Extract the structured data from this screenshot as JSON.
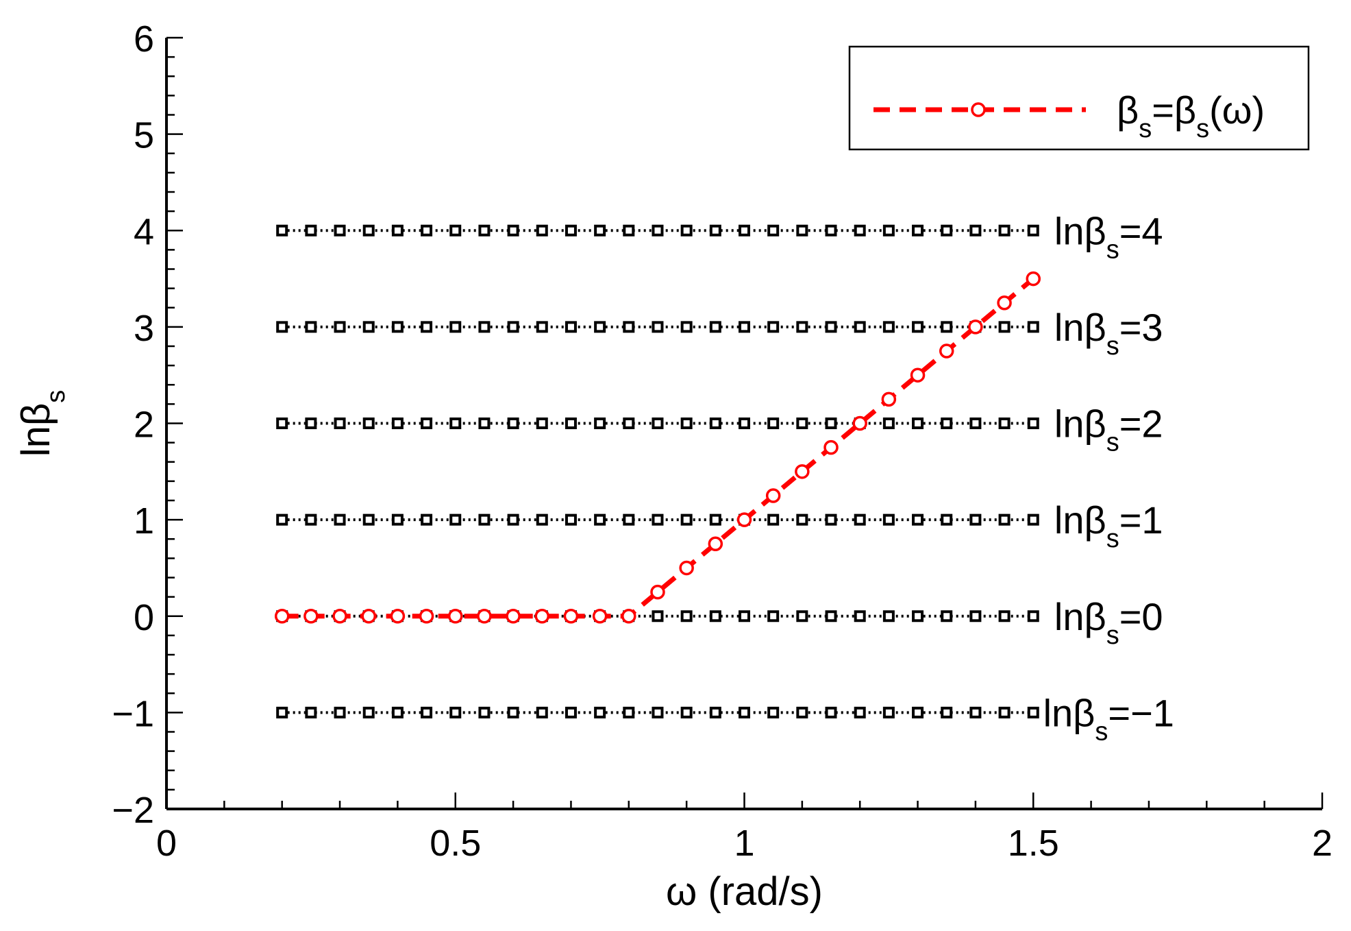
{
  "chart_data": {
    "type": "line",
    "xlabel": "ω (rad/s)",
    "ylabel": {
      "base": "lnβ",
      "sub": "s"
    },
    "xlim": [
      0,
      2
    ],
    "ylim": [
      -2,
      6
    ],
    "xticks": [
      {
        "value": 0,
        "label": "0"
      },
      {
        "value": 0.5,
        "label": "0.5"
      },
      {
        "value": 1,
        "label": "1"
      },
      {
        "value": 1.5,
        "label": "1.5"
      },
      {
        "value": 2,
        "label": "2"
      }
    ],
    "yticks": [
      {
        "value": -2,
        "label": "−2"
      },
      {
        "value": -1,
        "label": "−1"
      },
      {
        "value": 0,
        "label": "0"
      },
      {
        "value": 1,
        "label": "1"
      },
      {
        "value": 2,
        "label": "2"
      },
      {
        "value": 3,
        "label": "3"
      },
      {
        "value": 4,
        "label": "4"
      },
      {
        "value": 5,
        "label": "5"
      },
      {
        "value": 6,
        "label": "6"
      }
    ],
    "grid": false,
    "legend": {
      "placement": "top-right",
      "entries": [
        {
          "base": "β",
          "sub": "s",
          "eq": "=",
          "base2": "β",
          "sub2": "s",
          "tail": "(ω)"
        }
      ]
    },
    "reference_lines": {
      "color": "#000000",
      "marker": "square",
      "x": [
        0.2,
        0.25,
        0.3,
        0.35,
        0.4,
        0.45,
        0.5,
        0.55,
        0.6,
        0.65,
        0.7,
        0.75,
        0.8,
        0.85,
        0.9,
        0.95,
        1.0,
        1.05,
        1.1,
        1.15,
        1.2,
        1.25,
        1.3,
        1.35,
        1.4,
        1.45,
        1.5
      ],
      "lines": [
        {
          "y": 4,
          "label": {
            "base": "lnβ",
            "sub": "s",
            "tail": "=4"
          }
        },
        {
          "y": 3,
          "label": {
            "base": "lnβ",
            "sub": "s",
            "tail": "=3"
          }
        },
        {
          "y": 2,
          "label": {
            "base": "lnβ",
            "sub": "s",
            "tail": "=2"
          }
        },
        {
          "y": 1,
          "label": {
            "base": "lnβ",
            "sub": "s",
            "tail": "=1"
          }
        },
        {
          "y": 0,
          "label": {
            "base": "lnβ",
            "sub": "s",
            "tail": "=0"
          }
        },
        {
          "y": -1,
          "label": {
            "base": "lnβ",
            "sub": "s",
            "tail": "=−1"
          }
        }
      ]
    },
    "series": [
      {
        "color": "#ff0000",
        "marker": "circle",
        "line_style": "dashed",
        "x": [
          0.2,
          0.25,
          0.3,
          0.35,
          0.4,
          0.45,
          0.5,
          0.55,
          0.6,
          0.65,
          0.7,
          0.75,
          0.8,
          0.85,
          0.9,
          0.95,
          1.0,
          1.05,
          1.1,
          1.15,
          1.2,
          1.25,
          1.3,
          1.35,
          1.4,
          1.45,
          1.5
        ],
        "y": [
          0,
          0,
          0,
          0,
          0,
          0,
          0,
          0,
          0,
          0,
          0,
          0,
          0,
          0.25,
          0.5,
          0.75,
          1.0,
          1.25,
          1.5,
          1.75,
          2.0,
          2.25,
          2.5,
          2.75,
          3.0,
          3.25,
          3.5
        ]
      }
    ]
  }
}
